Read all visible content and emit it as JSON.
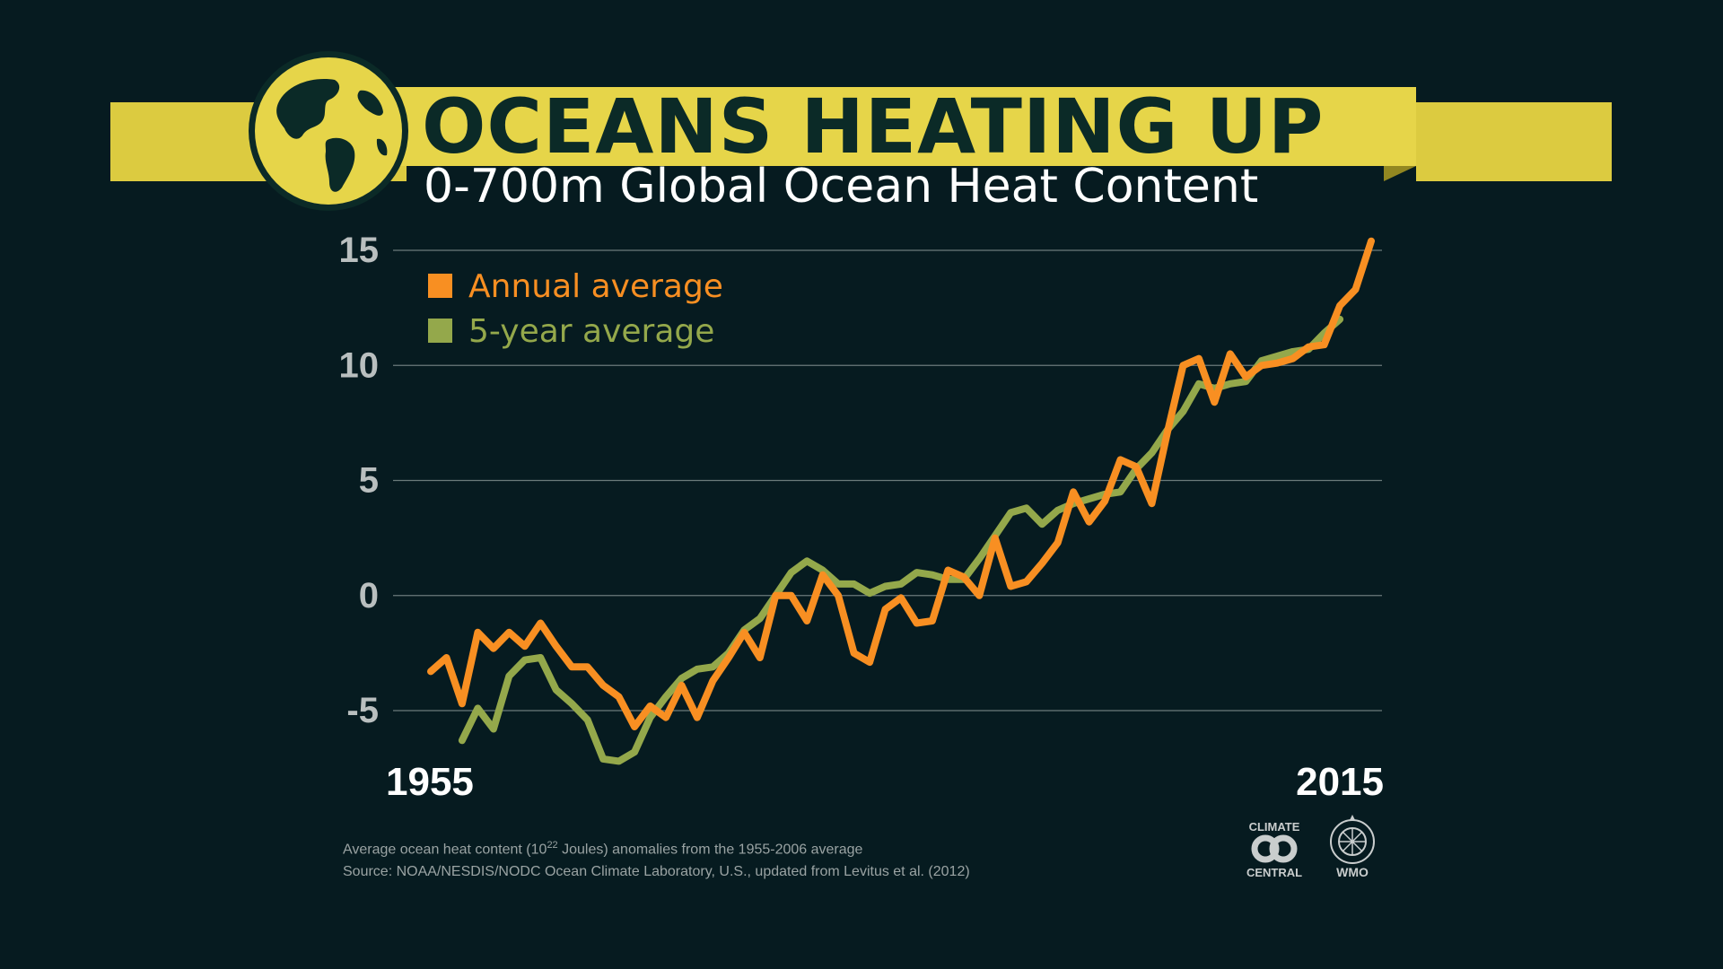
{
  "header": {
    "title": "OCEANS HEATING UP",
    "subtitle": "0-700m Global Ocean Heat Content"
  },
  "colors": {
    "background": "#061b20",
    "banner": "#e6d549",
    "annual": "#f88f22",
    "five_year": "#94a84b",
    "grid": "#6b7b7b"
  },
  "chart_data": {
    "type": "line",
    "title": "OCEANS HEATING UP",
    "subtitle": "0-700m Global Ocean Heat Content",
    "xlabel": "",
    "ylabel": "",
    "xlim": [
      1955,
      2015
    ],
    "ylim": [
      -7,
      15
    ],
    "yticks": [
      "15",
      "10",
      "5",
      "0",
      "-5"
    ],
    "xtick_labels": [
      "1955",
      "2015"
    ],
    "legend": {
      "placement": "top-left"
    },
    "series": [
      {
        "name": "Annual average",
        "color": "#f88f22",
        "x": [
          1955,
          1956,
          1957,
          1958,
          1959,
          1960,
          1961,
          1962,
          1963,
          1964,
          1965,
          1966,
          1967,
          1968,
          1969,
          1970,
          1971,
          1972,
          1973,
          1974,
          1975,
          1976,
          1977,
          1978,
          1979,
          1980,
          1981,
          1982,
          1983,
          1984,
          1985,
          1986,
          1987,
          1988,
          1989,
          1990,
          1991,
          1992,
          1993,
          1994,
          1995,
          1996,
          1997,
          1998,
          1999,
          2000,
          2001,
          2002,
          2003,
          2004,
          2005,
          2006,
          2007,
          2008,
          2009,
          2010,
          2011,
          2012,
          2013,
          2014,
          2015
        ],
        "values": [
          -3.3,
          -2.7,
          -4.7,
          -1.6,
          -2.3,
          -1.6,
          -2.2,
          -1.2,
          -2.2,
          -3.1,
          -3.1,
          -3.9,
          -4.4,
          -5.7,
          -4.8,
          -5.3,
          -3.9,
          -5.3,
          -3.7,
          -2.7,
          -1.6,
          -2.7,
          0,
          0,
          -1.1,
          0.9,
          0,
          -2.5,
          -2.9,
          -0.6,
          -0.1,
          -1.2,
          -1.1,
          1.1,
          0.8,
          0,
          2.5,
          0.4,
          0.6,
          1.4,
          2.3,
          4.5,
          3.2,
          4.1,
          5.9,
          5.6,
          4,
          7.1,
          10,
          10.3,
          8.4,
          10.5,
          9.5,
          10,
          10.1,
          10.3,
          10.8,
          10.9,
          12.6,
          13.3,
          15.4
        ]
      },
      {
        "name": "5-year average",
        "color": "#94a84b",
        "x": [
          1957,
          1958,
          1959,
          1960,
          1961,
          1962,
          1963,
          1964,
          1965,
          1966,
          1967,
          1968,
          1969,
          1970,
          1971,
          1972,
          1973,
          1974,
          1975,
          1976,
          1977,
          1978,
          1979,
          1980,
          1981,
          1982,
          1983,
          1984,
          1985,
          1986,
          1987,
          1988,
          1989,
          1990,
          1991,
          1992,
          1993,
          1994,
          1995,
          1996,
          1997,
          1998,
          1999,
          2000,
          2001,
          2002,
          2003,
          2004,
          2005,
          2006,
          2007,
          2008,
          2009,
          2010,
          2011,
          2012,
          2013
        ],
        "values": [
          -6.3,
          -4.9,
          -5.8,
          -3.5,
          -2.8,
          -2.7,
          -4.1,
          -4.7,
          -5.4,
          -7.1,
          -7.2,
          -6.8,
          -5.3,
          -4.4,
          -3.6,
          -3.2,
          -3.1,
          -2.5,
          -1.5,
          -1,
          0,
          1,
          1.5,
          1.1,
          0.5,
          0.5,
          0.1,
          0.4,
          0.5,
          1,
          0.9,
          0.7,
          0.7,
          1.6,
          2.6,
          3.6,
          3.8,
          3.1,
          3.7,
          4,
          4.2,
          4.4,
          4.5,
          5.5,
          6.2,
          7.2,
          8,
          9.2,
          9,
          9.2,
          9.3,
          10.2,
          10.4,
          10.6,
          10.7,
          11.4,
          12
        ]
      }
    ]
  },
  "footer": {
    "note_prefix": "Average ocean heat content  (10",
    "note_sup": "22",
    "note_suffix": " Joules) anomalies from the 1955-2006 average",
    "source": "Source: NOAA/NESDIS/NODC Ocean Climate Laboratory, U.S., updated from Levitus et al. (2012)"
  },
  "logos": {
    "climate_central_top": "CLIMATE",
    "climate_central_bottom": "CENTRAL",
    "wmo": "WMO"
  }
}
